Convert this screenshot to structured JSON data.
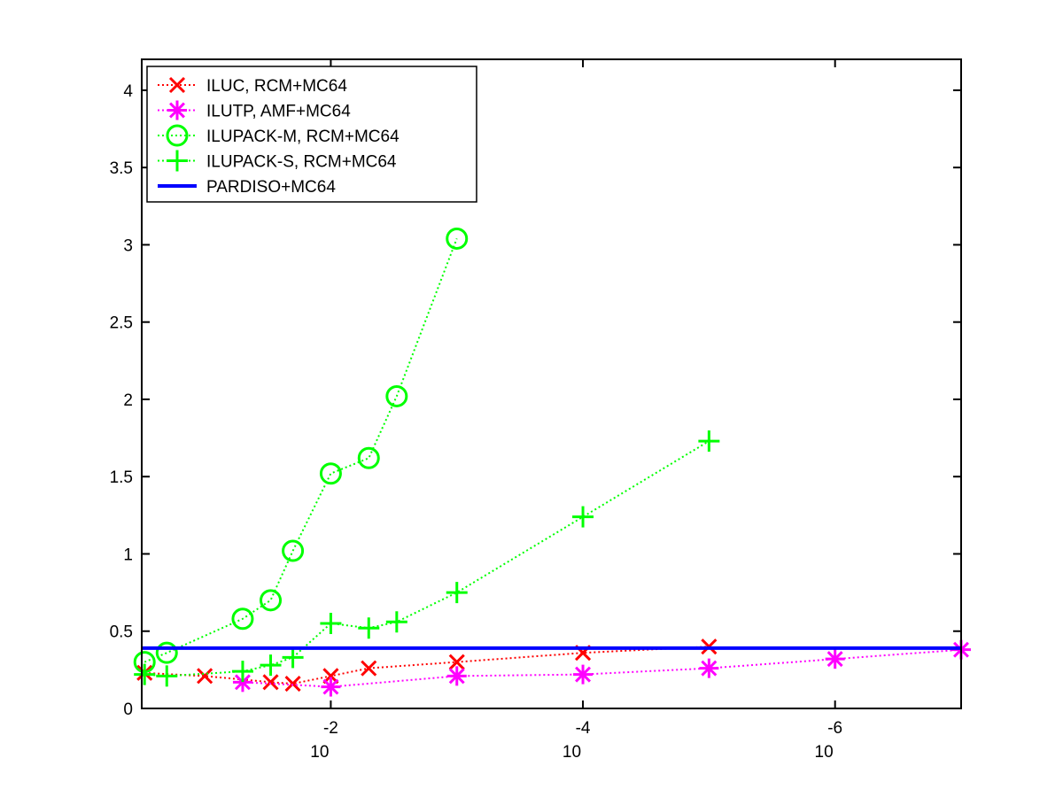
{
  "chart_data": {
    "type": "line",
    "title": "",
    "xlabel": "",
    "ylabel": "",
    "x_scale": "log-reversed",
    "xlim": [
      0.316,
      1e-07
    ],
    "ylim": [
      0,
      4.2
    ],
    "grid": false,
    "legend_placement": "top-left",
    "y_ticks": [
      {
        "value": 0,
        "label": "0"
      },
      {
        "value": 0.5,
        "label": "0.5"
      },
      {
        "value": 1,
        "label": "1"
      },
      {
        "value": 1.5,
        "label": "1.5"
      },
      {
        "value": 2,
        "label": "2"
      },
      {
        "value": 2.5,
        "label": "2.5"
      },
      {
        "value": 3,
        "label": "3"
      },
      {
        "value": 3.5,
        "label": "3.5"
      },
      {
        "value": 4,
        "label": "4"
      }
    ],
    "x_ticks": [
      {
        "value": 0.01,
        "base": "10",
        "exponent": "-2"
      },
      {
        "value": 0.0001,
        "base": "10",
        "exponent": "-4"
      },
      {
        "value": 1e-06,
        "base": "10",
        "exponent": "-6"
      }
    ],
    "series": [
      {
        "name": "ILUC, RCM+MC64",
        "color": "#ff0000",
        "marker": "x",
        "line": "dotted",
        "x": [
          0.3,
          0.1,
          0.03,
          0.02,
          0.01,
          0.005,
          0.001,
          0.0001,
          1e-05
        ],
        "y": [
          0.23,
          0.21,
          0.17,
          0.16,
          0.21,
          0.26,
          0.3,
          0.36,
          0.4
        ]
      },
      {
        "name": "ILUTP, AMF+MC64",
        "color": "#ff00ff",
        "marker": "asterisk",
        "line": "dotted",
        "x": [
          0.05,
          0.01,
          0.001,
          0.0001,
          1e-05,
          1e-06,
          1e-07
        ],
        "y": [
          0.17,
          0.14,
          0.21,
          0.22,
          0.26,
          0.32,
          0.38
        ]
      },
      {
        "name": "ILUPACK-M, RCM+MC64",
        "color": "#00ff00",
        "marker": "circle",
        "line": "dotted",
        "x": [
          0.3,
          0.2,
          0.05,
          0.03,
          0.02,
          0.01,
          0.005,
          0.003,
          0.001
        ],
        "y": [
          0.3,
          0.36,
          0.58,
          0.7,
          1.02,
          1.52,
          1.62,
          2.02,
          3.04
        ]
      },
      {
        "name": "ILUPACK-S, RCM+MC64",
        "color": "#00ff00",
        "marker": "plus",
        "line": "dotted",
        "x": [
          0.3,
          0.2,
          0.05,
          0.03,
          0.02,
          0.01,
          0.005,
          0.003,
          0.001,
          0.0001,
          1e-05
        ],
        "y": [
          0.22,
          0.21,
          0.24,
          0.28,
          0.33,
          0.55,
          0.52,
          0.56,
          0.75,
          1.24,
          1.73
        ]
      },
      {
        "name": "PARDISO+MC64",
        "color": "#0000ff",
        "marker": "none",
        "line": "solid",
        "x": [
          0.316,
          1e-07
        ],
        "y": [
          0.39,
          0.39
        ]
      }
    ]
  }
}
